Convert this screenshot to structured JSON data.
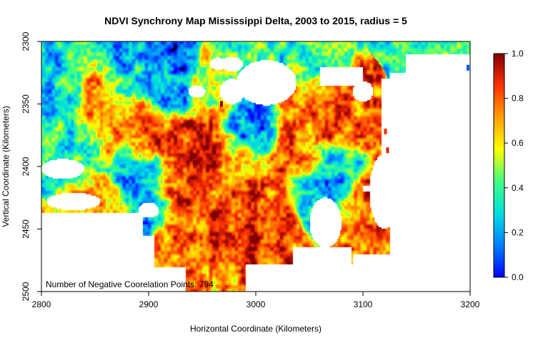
{
  "chart_data": {
    "type": "heatmap",
    "title": "NDVI Synchrony Map Mississippi Delta, 2003 to 2015, radius = 5",
    "xlabel": "Horizontal Coordinate (Kilometers)",
    "ylabel": "Vertical Coordinate (Kilometers)",
    "xlim": [
      2800,
      3200
    ],
    "ylim": [
      2300,
      2500
    ],
    "y_axis_inverted": true,
    "xticks": [
      2800,
      2900,
      3000,
      3100,
      3200
    ],
    "yticks": [
      2300,
      2350,
      2400,
      2450,
      2500
    ],
    "annotation": "Number of Negative Coorelation Points: 794",
    "negative_correlation_points": 794,
    "colorbar": {
      "min": 0.0,
      "max": 1.0,
      "ticks": [
        0.0,
        0.2,
        0.4,
        0.6,
        0.8,
        1.0
      ],
      "tick_labels": [
        "0.0",
        "0.2",
        "0.4",
        "0.6",
        "0.8",
        "1.0"
      ],
      "colormap": [
        "#0000ff",
        "#0080ff",
        "#00e0e0",
        "#40ff80",
        "#ffff00",
        "#ffa000",
        "#ff3000",
        "#800000"
      ]
    },
    "grid": false,
    "legend": "colorbar right",
    "value_regions": [
      {
        "x": 2855,
        "y": 2335,
        "value": 0.76
      },
      {
        "x": 2860,
        "y": 2365,
        "value": 0.7
      },
      {
        "x": 2900,
        "y": 2375,
        "value": 0.74
      },
      {
        "x": 2925,
        "y": 2405,
        "value": 0.84
      },
      {
        "x": 2950,
        "y": 2385,
        "value": 0.86
      },
      {
        "x": 2985,
        "y": 2395,
        "value": 0.68
      },
      {
        "x": 2970,
        "y": 2432,
        "value": 0.8
      },
      {
        "x": 3005,
        "y": 2445,
        "value": 0.84
      },
      {
        "x": 3040,
        "y": 2390,
        "value": 0.8
      },
      {
        "x": 3070,
        "y": 2357,
        "value": 0.78
      },
      {
        "x": 3045,
        "y": 2350,
        "value": 0.72
      },
      {
        "x": 2850,
        "y": 2432,
        "value": 0.72
      },
      {
        "x": 3108,
        "y": 2440,
        "value": 0.76
      },
      {
        "x": 2945,
        "y": 2475,
        "value": 0.76
      },
      {
        "x": 2960,
        "y": 2340,
        "value": 0.62
      },
      {
        "x": 2820,
        "y": 2335,
        "value": 0.32
      },
      {
        "x": 2870,
        "y": 2320,
        "value": 0.22
      },
      {
        "x": 2920,
        "y": 2330,
        "value": 0.12
      },
      {
        "x": 2995,
        "y": 2370,
        "value": 0.1
      },
      {
        "x": 2895,
        "y": 2410,
        "value": 0.16
      },
      {
        "x": 3060,
        "y": 2410,
        "value": 0.24
      },
      {
        "x": 2830,
        "y": 2385,
        "value": 0.36
      },
      {
        "x": 2990,
        "y": 2318,
        "value": 0.4
      },
      {
        "x": 3045,
        "y": 2318,
        "value": 0.38
      }
    ],
    "special_points": [
      {
        "x": 3123,
        "y": 2387,
        "value": 0.9
      },
      {
        "x": 2968,
        "y": 2350,
        "value": 0.98
      },
      {
        "x": 3121,
        "y": 2372,
        "value": 0.86
      },
      {
        "x": 3198,
        "y": 2321,
        "value": 0.1
      }
    ]
  }
}
